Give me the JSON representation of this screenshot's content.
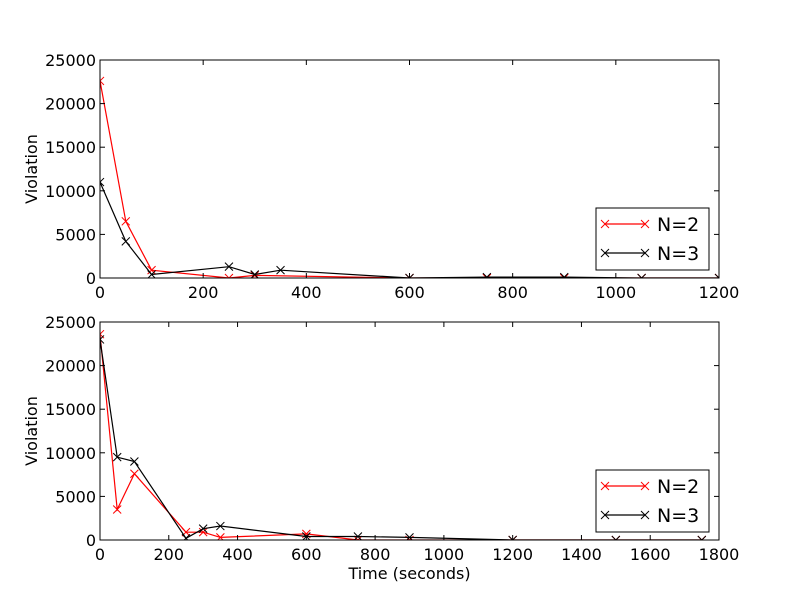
{
  "chart_data": [
    {
      "type": "line",
      "xlabel": "",
      "ylabel": "Violation",
      "xlim": [
        0,
        1200
      ],
      "ylim": [
        0,
        25000
      ],
      "xticks": [
        "0",
        "200",
        "400",
        "600",
        "800",
        "1000",
        "1200"
      ],
      "yticks": [
        "0",
        "5000",
        "10000",
        "15000",
        "20000",
        "25000"
      ],
      "legend_position": "lower-right",
      "grid": false,
      "series": [
        {
          "name": "N=2",
          "color": "#ff0000",
          "marker": "x",
          "points": [
            [
              0,
              22600
            ],
            [
              50,
              6500
            ],
            [
              100,
              900
            ],
            [
              250,
              0
            ],
            [
              300,
              300
            ],
            [
              600,
              0
            ],
            [
              750,
              0
            ],
            [
              900,
              0
            ],
            [
              1050,
              0
            ],
            [
              1200,
              0
            ]
          ]
        },
        {
          "name": "N=3",
          "color": "#000000",
          "marker": "x",
          "points": [
            [
              0,
              11000
            ],
            [
              50,
              4200
            ],
            [
              100,
              400
            ],
            [
              250,
              1300
            ],
            [
              300,
              400
            ],
            [
              350,
              900
            ],
            [
              600,
              0
            ],
            [
              750,
              100
            ],
            [
              900,
              100
            ],
            [
              1050,
              0
            ],
            [
              1200,
              0
            ]
          ]
        }
      ]
    },
    {
      "type": "line",
      "xlabel": "Time (seconds)",
      "ylabel": "Violation",
      "xlim": [
        0,
        1800
      ],
      "ylim": [
        0,
        25000
      ],
      "xticks": [
        "0",
        "200",
        "400",
        "600",
        "800",
        "1000",
        "1200",
        "1400",
        "1600",
        "1800"
      ],
      "yticks": [
        "0",
        "5000",
        "10000",
        "15000",
        "20000",
        "25000"
      ],
      "legend_position": "lower-right",
      "grid": false,
      "series": [
        {
          "name": "N=2",
          "color": "#ff0000",
          "marker": "x",
          "points": [
            [
              0,
              23600
            ],
            [
              50,
              3500
            ],
            [
              100,
              7600
            ],
            [
              250,
              900
            ],
            [
              300,
              900
            ],
            [
              350,
              300
            ],
            [
              600,
              700
            ],
            [
              750,
              0
            ],
            [
              900,
              0
            ],
            [
              1200,
              0
            ],
            [
              1500,
              0
            ],
            [
              1750,
              0
            ]
          ]
        },
        {
          "name": "N=3",
          "color": "#000000",
          "marker": "x",
          "points": [
            [
              0,
              23000
            ],
            [
              50,
              9500
            ],
            [
              100,
              9000
            ],
            [
              250,
              200
            ],
            [
              300,
              1300
            ],
            [
              350,
              1600
            ],
            [
              600,
              400
            ],
            [
              750,
              400
            ],
            [
              900,
              300
            ],
            [
              1200,
              0
            ],
            [
              1500,
              0
            ],
            [
              1750,
              0
            ]
          ]
        }
      ]
    }
  ]
}
